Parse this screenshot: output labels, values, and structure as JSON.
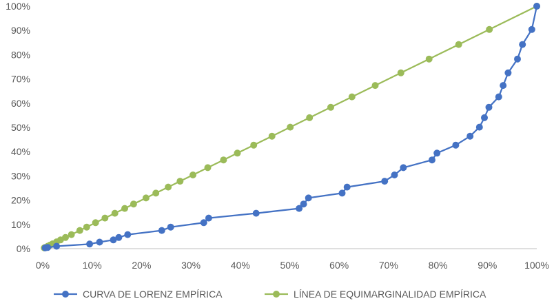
{
  "chart_data": {
    "type": "line",
    "title": "",
    "xlabel": "",
    "ylabel": "",
    "xlim": [
      0,
      100
    ],
    "ylim": [
      0,
      100
    ],
    "x_ticks": [
      "0%",
      "10%",
      "20%",
      "30%",
      "40%",
      "50%",
      "60%",
      "70%",
      "80%",
      "90%",
      "100%"
    ],
    "y_ticks": [
      "0%",
      "10%",
      "20%",
      "30%",
      "40%",
      "50%",
      "60%",
      "70%",
      "80%",
      "90%",
      "100%"
    ],
    "grid": "none",
    "legend": "bottom",
    "series": [
      {
        "name": "CURVA DE LORENZ EMPÍRICA",
        "color": "#4472C4",
        "x": [
          0.5,
          1,
          2.8,
          9.5,
          11.5,
          14.3,
          15.4,
          17.2,
          24.1,
          25.9,
          32.6,
          33.6,
          43.2,
          51.9,
          52.8,
          53.8,
          60.6,
          61.6,
          69.2,
          71.2,
          73,
          78.8,
          79.8,
          83.6,
          86.5,
          88.4,
          89.4,
          90.3,
          92.3,
          93.2,
          94.2,
          96.1,
          97.1,
          99,
          100
        ],
        "y": [
          0.3,
          0.5,
          1,
          1.9,
          2.7,
          3.6,
          4.6,
          5.8,
          7.5,
          8.9,
          10.7,
          12.6,
          14.6,
          16.6,
          18.4,
          20.9,
          22.9,
          25.4,
          27.8,
          30.4,
          33.4,
          36.6,
          39.4,
          42.7,
          46.4,
          50.1,
          54,
          58.3,
          62.6,
          67.3,
          72.5,
          78.2,
          84.2,
          90.4,
          100
        ]
      },
      {
        "name": "LÍNEA DE EQUIMARGINALIDAD EMPÍRICA",
        "color": "#9BBB59",
        "x": [
          0.3,
          0.5,
          1,
          1.5,
          2,
          2.8,
          3.6,
          4.6,
          5.8,
          7.5,
          8.9,
          10.7,
          12.6,
          14.6,
          16.6,
          18.4,
          20.9,
          22.9,
          25.4,
          27.8,
          30.4,
          33.4,
          36.6,
          39.4,
          42.7,
          46.4,
          50.1,
          54,
          58.3,
          62.6,
          67.3,
          72.5,
          78.2,
          84.2,
          90.4,
          100
        ],
        "y": [
          0.3,
          0.5,
          1,
          1.5,
          2,
          2.8,
          3.6,
          4.6,
          5.8,
          7.5,
          8.9,
          10.7,
          12.6,
          14.6,
          16.6,
          18.4,
          20.9,
          22.9,
          25.4,
          27.8,
          30.4,
          33.4,
          36.6,
          39.4,
          42.7,
          46.4,
          50.1,
          54,
          58.3,
          62.6,
          67.3,
          72.5,
          78.2,
          84.2,
          90.4,
          100
        ]
      }
    ]
  }
}
